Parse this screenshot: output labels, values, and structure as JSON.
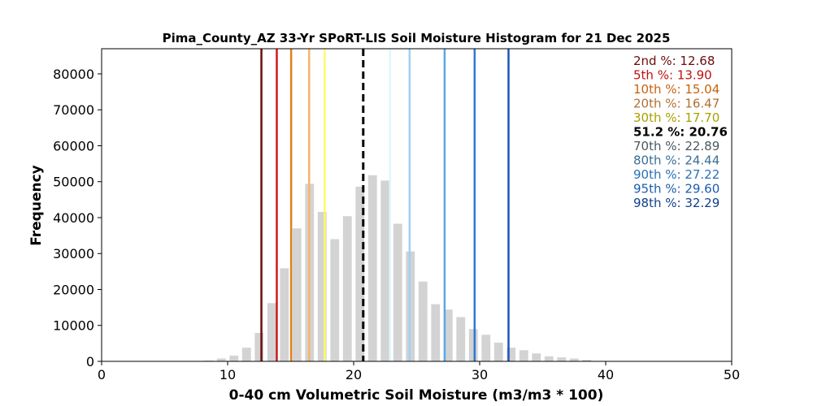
{
  "chart_data": {
    "type": "bar",
    "title": "Pima_County_AZ 33-Yr SPoRT-LIS Soil Moisture Histogram for 21 Dec 2025",
    "xlabel": "0-40 cm Volumetric Soil Moisture (m3/m3 * 100)",
    "ylabel": "Frequency",
    "xlim": [
      0,
      50
    ],
    "ylim": [
      0,
      87000
    ],
    "x_ticks": [
      0,
      10,
      20,
      30,
      40,
      50
    ],
    "y_ticks": [
      0,
      10000,
      20000,
      30000,
      40000,
      50000,
      60000,
      70000,
      80000
    ],
    "grid": false,
    "bar_color": "#d3d3d3",
    "bin_width": 1,
    "bins": [
      {
        "x": 7.5,
        "y": 100
      },
      {
        "x": 8.5,
        "y": 200
      },
      {
        "x": 9.5,
        "y": 800
      },
      {
        "x": 10.5,
        "y": 1600
      },
      {
        "x": 11.5,
        "y": 3800
      },
      {
        "x": 12.5,
        "y": 7900
      },
      {
        "x": 13.5,
        "y": 16200
      },
      {
        "x": 14.5,
        "y": 25900
      },
      {
        "x": 15.5,
        "y": 37000
      },
      {
        "x": 16.5,
        "y": 49400
      },
      {
        "x": 17.5,
        "y": 41600
      },
      {
        "x": 18.5,
        "y": 34000
      },
      {
        "x": 19.5,
        "y": 40400
      },
      {
        "x": 20.5,
        "y": 48600
      },
      {
        "x": 21.5,
        "y": 51800
      },
      {
        "x": 22.5,
        "y": 50300
      },
      {
        "x": 23.5,
        "y": 38300
      },
      {
        "x": 24.5,
        "y": 30600
      },
      {
        "x": 25.5,
        "y": 22200
      },
      {
        "x": 26.5,
        "y": 15900
      },
      {
        "x": 27.5,
        "y": 14400
      },
      {
        "x": 28.5,
        "y": 12300
      },
      {
        "x": 29.5,
        "y": 9000
      },
      {
        "x": 30.5,
        "y": 7400
      },
      {
        "x": 31.5,
        "y": 5200
      },
      {
        "x": 32.5,
        "y": 3800
      },
      {
        "x": 33.5,
        "y": 3100
      },
      {
        "x": 34.5,
        "y": 2200
      },
      {
        "x": 35.5,
        "y": 1400
      },
      {
        "x": 36.5,
        "y": 1100
      },
      {
        "x": 37.5,
        "y": 800
      },
      {
        "x": 38.5,
        "y": 400
      }
    ],
    "percentile_lines": [
      {
        "label": "2nd %: 12.68",
        "value": 12.68,
        "color": "#6b0c0c"
      },
      {
        "label": "5th %: 13.90",
        "value": 13.9,
        "color": "#d01818"
      },
      {
        "label": "10th %: 15.04",
        "value": 15.04,
        "color": "#e07f1c"
      },
      {
        "label": "20th %: 16.47",
        "value": 16.47,
        "color": "#f5b56c"
      },
      {
        "label": "30th %: 17.70",
        "value": 17.7,
        "color": "#fdfb6a"
      },
      {
        "label": "70th %: 22.89",
        "value": 22.89,
        "color": "#dcf8fb"
      },
      {
        "label": "80th %: 24.44",
        "value": 24.44,
        "color": "#9fd0f0"
      },
      {
        "label": "90th %: 27.22",
        "value": 27.22,
        "color": "#5aa6e8"
      },
      {
        "label": "95th %: 29.60",
        "value": 29.6,
        "color": "#2f78d2"
      },
      {
        "label": "98th %: 32.29",
        "value": 32.29,
        "color": "#1a58ba"
      }
    ],
    "current_line": {
      "label": "51.2 %: 20.76",
      "value": 20.76,
      "color": "#000000",
      "style": "dashed"
    },
    "legend": {
      "placement": "top-right",
      "entries": [
        {
          "label": "2nd %: 12.68",
          "color": "#6b0c0c"
        },
        {
          "label": "5th %: 13.90",
          "color": "#c01010"
        },
        {
          "label": "10th %: 15.04",
          "color": "#c8620a"
        },
        {
          "label": "20th %: 16.47",
          "color": "#b07030"
        },
        {
          "label": "30th %: 17.70",
          "color": "#a8a000"
        },
        {
          "label": "51.2 %: 20.76",
          "color": "#000000"
        },
        {
          "label": "70th %: 22.89",
          "color": "#4a5a60"
        },
        {
          "label": "80th %: 24.44",
          "color": "#3a6f96"
        },
        {
          "label": "90th %: 27.22",
          "color": "#2a70b8"
        },
        {
          "label": "95th %: 29.60",
          "color": "#1c5cae"
        },
        {
          "label": "98th %: 32.29",
          "color": "#123f8a"
        }
      ]
    }
  }
}
